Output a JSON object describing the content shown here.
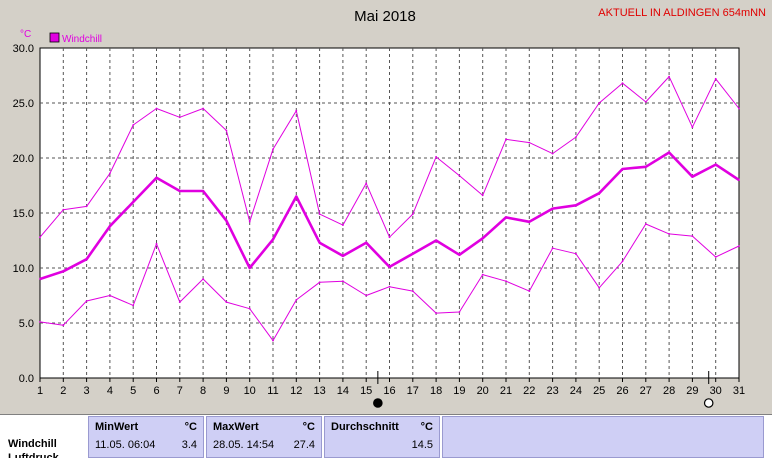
{
  "header": {
    "title": "Mai 2018",
    "station": "AKTUELL IN ALDINGEN 654mNN",
    "unit": "°C"
  },
  "legend": {
    "label": "Windchill",
    "color": "#e000e0"
  },
  "chart_data": {
    "type": "line",
    "title": "Mai 2018",
    "ylabel": "°C",
    "xlim": [
      1,
      31
    ],
    "ylim": [
      0,
      30
    ],
    "x": [
      1,
      2,
      3,
      4,
      5,
      6,
      7,
      8,
      9,
      10,
      11,
      12,
      13,
      14,
      15,
      16,
      17,
      18,
      19,
      20,
      21,
      22,
      23,
      24,
      25,
      26,
      27,
      28,
      29,
      30,
      31
    ],
    "x_ticks": [
      "1",
      "2",
      "3",
      "4",
      "5",
      "6",
      "7",
      "8",
      "9",
      "10",
      "11",
      "12",
      "13",
      "14",
      "15",
      "16",
      "17",
      "18",
      "19",
      "20",
      "21",
      "22",
      "23",
      "24",
      "25",
      "26",
      "27",
      "28",
      "29",
      "30",
      "31"
    ],
    "y_ticks": [
      "0.0",
      "5.0",
      "10.0",
      "15.0",
      "20.0",
      "25.0",
      "30.0"
    ],
    "grid": true,
    "legend_position": "top-left",
    "series": [
      {
        "role": "max",
        "color": "#e000e0",
        "values": [
          12.8,
          15.3,
          15.6,
          18.6,
          23.0,
          24.5,
          23.7,
          24.5,
          22.5,
          14.2,
          20.8,
          24.3,
          14.9,
          13.9,
          17.7,
          12.8,
          14.9,
          20.1,
          18.4,
          16.6,
          21.7,
          21.4,
          20.4,
          21.9,
          25.0,
          26.8,
          25.1,
          27.4,
          22.8,
          27.2,
          24.5
        ]
      },
      {
        "role": "avg",
        "name": "Windchill",
        "color": "#e000e0",
        "values": [
          9.0,
          9.7,
          10.8,
          13.8,
          16.0,
          18.2,
          17.0,
          17.0,
          14.3,
          10.0,
          12.6,
          16.5,
          12.3,
          11.1,
          12.3,
          10.1,
          11.3,
          12.5,
          11.2,
          12.7,
          14.6,
          14.2,
          15.4,
          15.7,
          16.8,
          19.0,
          19.2,
          20.5,
          18.3,
          19.4,
          18.0
        ]
      },
      {
        "role": "min",
        "color": "#e000e0",
        "values": [
          5.1,
          4.8,
          7.0,
          7.5,
          6.6,
          12.2,
          6.9,
          9.0,
          6.9,
          6.3,
          3.4,
          7.1,
          8.7,
          8.8,
          7.5,
          8.3,
          7.9,
          5.9,
          6.0,
          9.4,
          8.8,
          7.9,
          11.8,
          11.3,
          8.2,
          10.6,
          14.0,
          13.1,
          12.9,
          11.0,
          12.0
        ]
      }
    ],
    "markers": [
      {
        "day": 15.5,
        "symbol": "filled-circle"
      },
      {
        "day": 29.7,
        "symbol": "open-circle"
      }
    ]
  },
  "stats": {
    "row_label": "Windchill",
    "row_label_2": "Luftdruck",
    "min_header": "MinWert",
    "max_header": "MaxWert",
    "avg_header": "Durchschnitt",
    "unit": "°C",
    "min_time": "11.05.  06:04",
    "min_value": "3.4",
    "max_time": "28.05.  14:54",
    "max_value": "27.4",
    "avg_value": "14.5"
  }
}
